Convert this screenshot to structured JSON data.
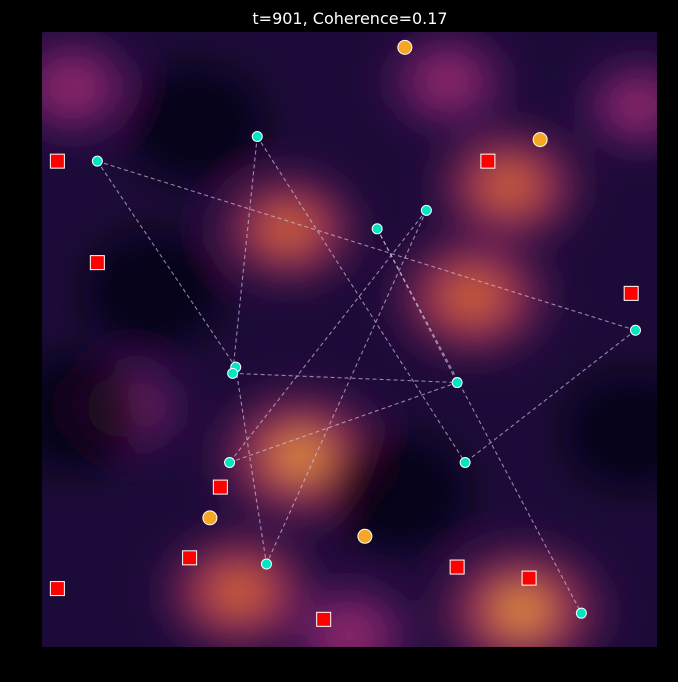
{
  "chart_data": {
    "type": "scatter",
    "title": "t=901, Coherence=0.17",
    "xlabel": "",
    "ylabel": "",
    "xlim": [
      0,
      1
    ],
    "ylim": [
      1,
      0
    ],
    "grid": false,
    "legend": "none",
    "axes_visible": false,
    "background": {
      "type": "heatmap",
      "colormap": "inferno",
      "peaks": [
        {
          "x": 0.76,
          "y": 0.25,
          "intensity": 0.75
        },
        {
          "x": 0.7,
          "y": 0.43,
          "intensity": 0.85
        },
        {
          "x": 0.4,
          "y": 0.32,
          "intensity": 0.7
        },
        {
          "x": 0.42,
          "y": 0.69,
          "intensity": 1.0
        },
        {
          "x": 0.32,
          "y": 0.91,
          "intensity": 0.8
        },
        {
          "x": 0.78,
          "y": 0.94,
          "intensity": 1.0
        },
        {
          "x": 0.5,
          "y": 0.98,
          "intensity": 0.6
        },
        {
          "x": 0.05,
          "y": 0.09,
          "intensity": 0.55
        },
        {
          "x": 0.66,
          "y": 0.08,
          "intensity": 0.5
        },
        {
          "x": 0.13,
          "y": 0.61,
          "intensity": 0.45
        },
        {
          "x": 0.97,
          "y": 0.12,
          "intensity": 0.4
        }
      ]
    },
    "series": [
      {
        "marker": "circle",
        "color": "#00e6c3",
        "points": [
          {
            "x": 0.09,
            "y": 0.21
          },
          {
            "x": 0.35,
            "y": 0.17
          },
          {
            "x": 0.545,
            "y": 0.32
          },
          {
            "x": 0.625,
            "y": 0.29
          },
          {
            "x": 0.315,
            "y": 0.545
          },
          {
            "x": 0.31,
            "y": 0.555
          },
          {
            "x": 0.675,
            "y": 0.57
          },
          {
            "x": 0.965,
            "y": 0.485
          },
          {
            "x": 0.305,
            "y": 0.7
          },
          {
            "x": 0.688,
            "y": 0.7
          },
          {
            "x": 0.365,
            "y": 0.865
          },
          {
            "x": 0.877,
            "y": 0.945
          }
        ]
      },
      {
        "marker": "square",
        "color": "#ff0000",
        "points": [
          {
            "x": 0.025,
            "y": 0.21
          },
          {
            "x": 0.09,
            "y": 0.375
          },
          {
            "x": 0.725,
            "y": 0.21
          },
          {
            "x": 0.958,
            "y": 0.425
          },
          {
            "x": 0.29,
            "y": 0.74
          },
          {
            "x": 0.24,
            "y": 0.855
          },
          {
            "x": 0.025,
            "y": 0.905
          },
          {
            "x": 0.458,
            "y": 0.955
          },
          {
            "x": 0.675,
            "y": 0.87
          },
          {
            "x": 0.792,
            "y": 0.888
          }
        ]
      },
      {
        "marker": "circle",
        "color": "#f5a623",
        "points": [
          {
            "x": 0.59,
            "y": 0.025
          },
          {
            "x": 0.81,
            "y": 0.175
          },
          {
            "x": 0.273,
            "y": 0.79
          },
          {
            "x": 0.525,
            "y": 0.82
          }
        ]
      }
    ],
    "connections": [
      [
        0,
        4
      ],
      [
        1,
        5
      ],
      [
        1,
        9
      ],
      [
        2,
        6
      ],
      [
        2,
        11
      ],
      [
        3,
        8
      ],
      [
        3,
        10
      ],
      [
        0,
        7
      ],
      [
        5,
        6
      ],
      [
        8,
        6
      ],
      [
        7,
        9
      ],
      [
        4,
        10
      ]
    ]
  }
}
